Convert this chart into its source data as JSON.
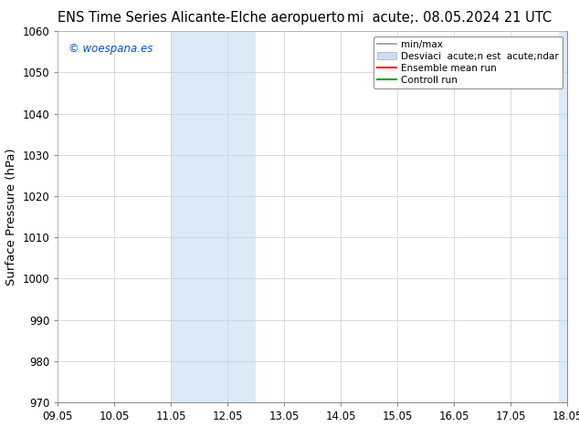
{
  "title_left": "ENS Time Series Alicante-Elche aeropuerto",
  "title_right": "mi  acute;. 08.05.2024 21 UTC",
  "ylabel": "Surface Pressure (hPa)",
  "watermark": "© woespana.es",
  "watermark_color": "#0055cc",
  "ylim": [
    970,
    1060
  ],
  "yticks": [
    970,
    980,
    990,
    1000,
    1010,
    1020,
    1030,
    1040,
    1050,
    1060
  ],
  "xtick_labels": [
    "09.05",
    "10.05",
    "11.05",
    "12.05",
    "13.05",
    "14.05",
    "15.05",
    "16.05",
    "17.05",
    "18.05"
  ],
  "xtick_positions": [
    0,
    1,
    2,
    3,
    4,
    5,
    6,
    7,
    8,
    9
  ],
  "shaded_regions": [
    {
      "xmin": 2.0,
      "xmax": 3.5,
      "color": "#daeaf7"
    },
    {
      "xmin": 8.85,
      "xmax": 9.85,
      "color": "#daeaf7"
    }
  ],
  "legend_entries": [
    {
      "label": "min/max",
      "color": "#999999",
      "lw": 1.2
    },
    {
      "label": "Desviaci  acute;n est  acute;ndar",
      "color": "#c8dff0",
      "lw": 6
    },
    {
      "label": "Ensemble mean run",
      "color": "#ff0000",
      "lw": 1.5
    },
    {
      "label": "Controll run",
      "color": "#00aa00",
      "lw": 1.5
    }
  ],
  "bg_color": "#ffffff",
  "plot_bg_color": "#ffffff",
  "grid_color": "#cccccc",
  "tick_fontsize": 8.5,
  "label_fontsize": 9.5,
  "title_fontsize": 10.5,
  "legend_fontsize": 7.5
}
